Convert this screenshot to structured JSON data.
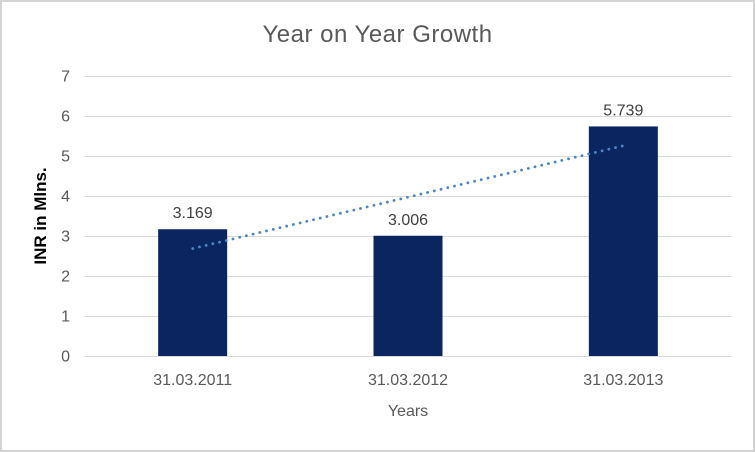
{
  "frame": {
    "background": "#ffffff",
    "border_color": "#d3d3d3"
  },
  "chart_data": {
    "type": "bar",
    "title": "Year on Year Growth",
    "categories": [
      "31.03.2011",
      "31.03.2012",
      "31.03.2013"
    ],
    "values": [
      3.169,
      3.006,
      5.739
    ],
    "data_labels": [
      "3.169",
      "3.006",
      "5.739"
    ],
    "xlabel": "Years",
    "ylabel": "INR in Mlns.",
    "ylim": [
      0,
      7
    ],
    "yticks": [
      0,
      1,
      2,
      3,
      4,
      5,
      6,
      7
    ],
    "grid": "horizontal",
    "legend": "none",
    "bar_color": "#0a2560",
    "trendline": {
      "type": "linear",
      "style": "dotted",
      "color": "#4a86c8",
      "start_value": 2.686,
      "end_value": 5.256
    },
    "colors": {
      "title": "#595959",
      "tick_labels": "#595959",
      "data_labels": "#404040",
      "gridlines": "#d9d9d9",
      "x_axis_title": "#595959",
      "y_axis_title": "#000000"
    }
  }
}
